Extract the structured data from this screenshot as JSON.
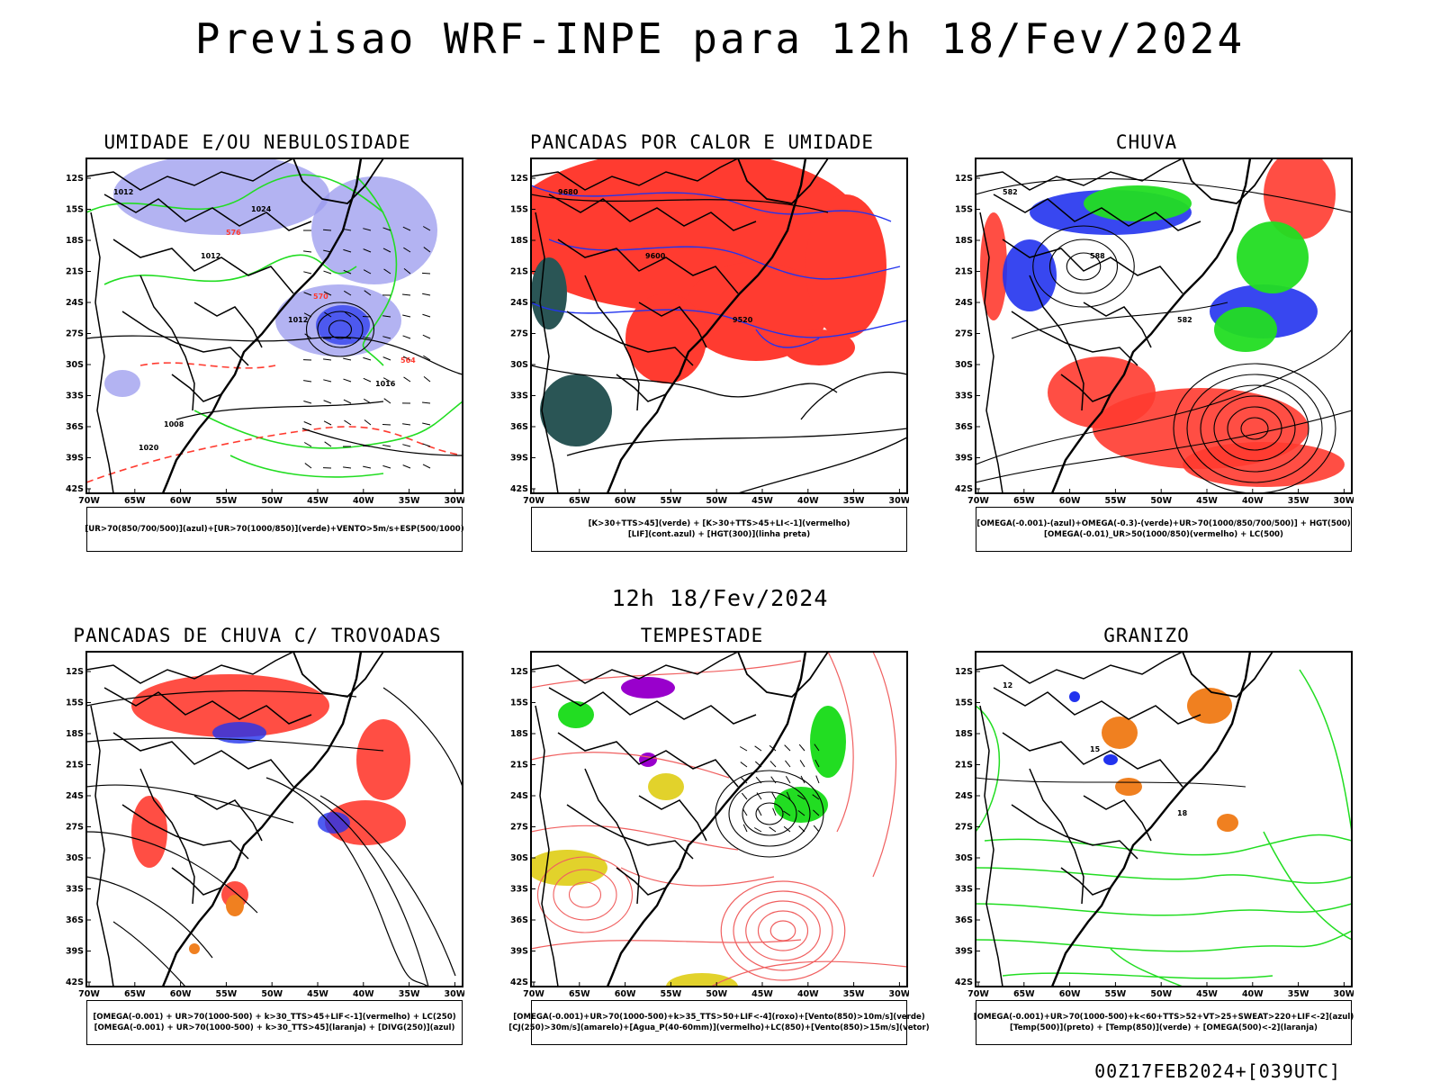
{
  "title": "Previsao WRF-INPE  para 12h 18/Fev/2024",
  "mid_date": "12h 18/Fev/2024",
  "footer": "00Z17FEB2024+[039UTC]",
  "axes": {
    "lat_labels": [
      "12S",
      "15S",
      "18S",
      "21S",
      "24S",
      "27S",
      "30S",
      "33S",
      "36S",
      "39S",
      "42S"
    ],
    "lon_labels": [
      "70W",
      "65W",
      "60W",
      "55W",
      "50W",
      "45W",
      "40W",
      "35W",
      "30W"
    ]
  },
  "colors": {
    "blue": "#2233ee",
    "green": "#22dd22",
    "red": "#ff3b30",
    "orange": "#f08020",
    "lavender": "#9999ee",
    "darkteal": "#2a5555",
    "yellow": "#e0d020",
    "purple": "#9900cc",
    "lightred": "#f06060"
  },
  "panels": [
    {
      "id": "umidade",
      "title": "UMIDADE E/OU NEBULOSIDADE",
      "legend": [
        "[UR>70(850/700/500)](azul)+[UR>70(1000/850)](verde)+VENTO>5m/s+ESP(500/1000)"
      ],
      "labels": [
        "1012",
        "1012",
        "1012",
        "1016",
        "1020",
        "576",
        "570",
        "564",
        "1008",
        "1024"
      ]
    },
    {
      "id": "pancadas",
      "title": "PANCADAS POR CALOR E UMIDADE",
      "legend": [
        "[K>30+TTS>45](verde) + [K>30+TTS>45+LI<-1](vermelho)",
        "[LIF](cont.azul) + [HGT(300)](linha preta)"
      ],
      "labels": [
        "9680",
        "9600",
        "9520"
      ]
    },
    {
      "id": "chuva",
      "title": "CHUVA",
      "legend": [
        "[OMEGA(-0.001)-(azul)+OMEGA(-0.3)-(verde)+UR>70(1000/850/700/500)] + HGT(500)",
        "[OMEGA(-0.01)_UR>50(1000/850)(vermelho) + LC(500)"
      ],
      "labels": [
        "582",
        "588",
        "582"
      ]
    },
    {
      "id": "trovoadas",
      "title": "PANCADAS DE CHUVA C/ TROVOADAS",
      "legend": [
        "[OMEGA(-0.001) + UR>70(1000-500) + k>30_TTS>45+LIF<-1](vermelho) + LC(250)",
        "[OMEGA(-0.001) + UR>70(1000-500) + k>30_TTS>45](laranja) + [DIVG(250)](azul)"
      ],
      "labels": []
    },
    {
      "id": "tempestade",
      "title": "TEMPESTADE",
      "legend": [
        "[OMEGA(-0.001)+UR>70(1000-500)+k>35_TTS>50+LIF<-4](roxo)+[Vento(850)>10m/s](verde)",
        "[CJ(250)>30m/s](amarelo)+[Agua_P(40-60mm)](vermelho)+LC(850)+[Vento(850)>15m/s](vetor)"
      ],
      "labels": []
    },
    {
      "id": "granizo",
      "title": "GRANIZO",
      "legend": [
        "[OMEGA(-0.001)+UR>70(1000-500)+k<60+TTS>52+VT>25+SWEAT>220+LIF<-2](azul)",
        "[Temp(500)](preto) + [Temp(850)](verde) + [OMEGA(500)<-2](laranja)"
      ],
      "labels": [
        "12",
        "15",
        "18"
      ]
    }
  ]
}
